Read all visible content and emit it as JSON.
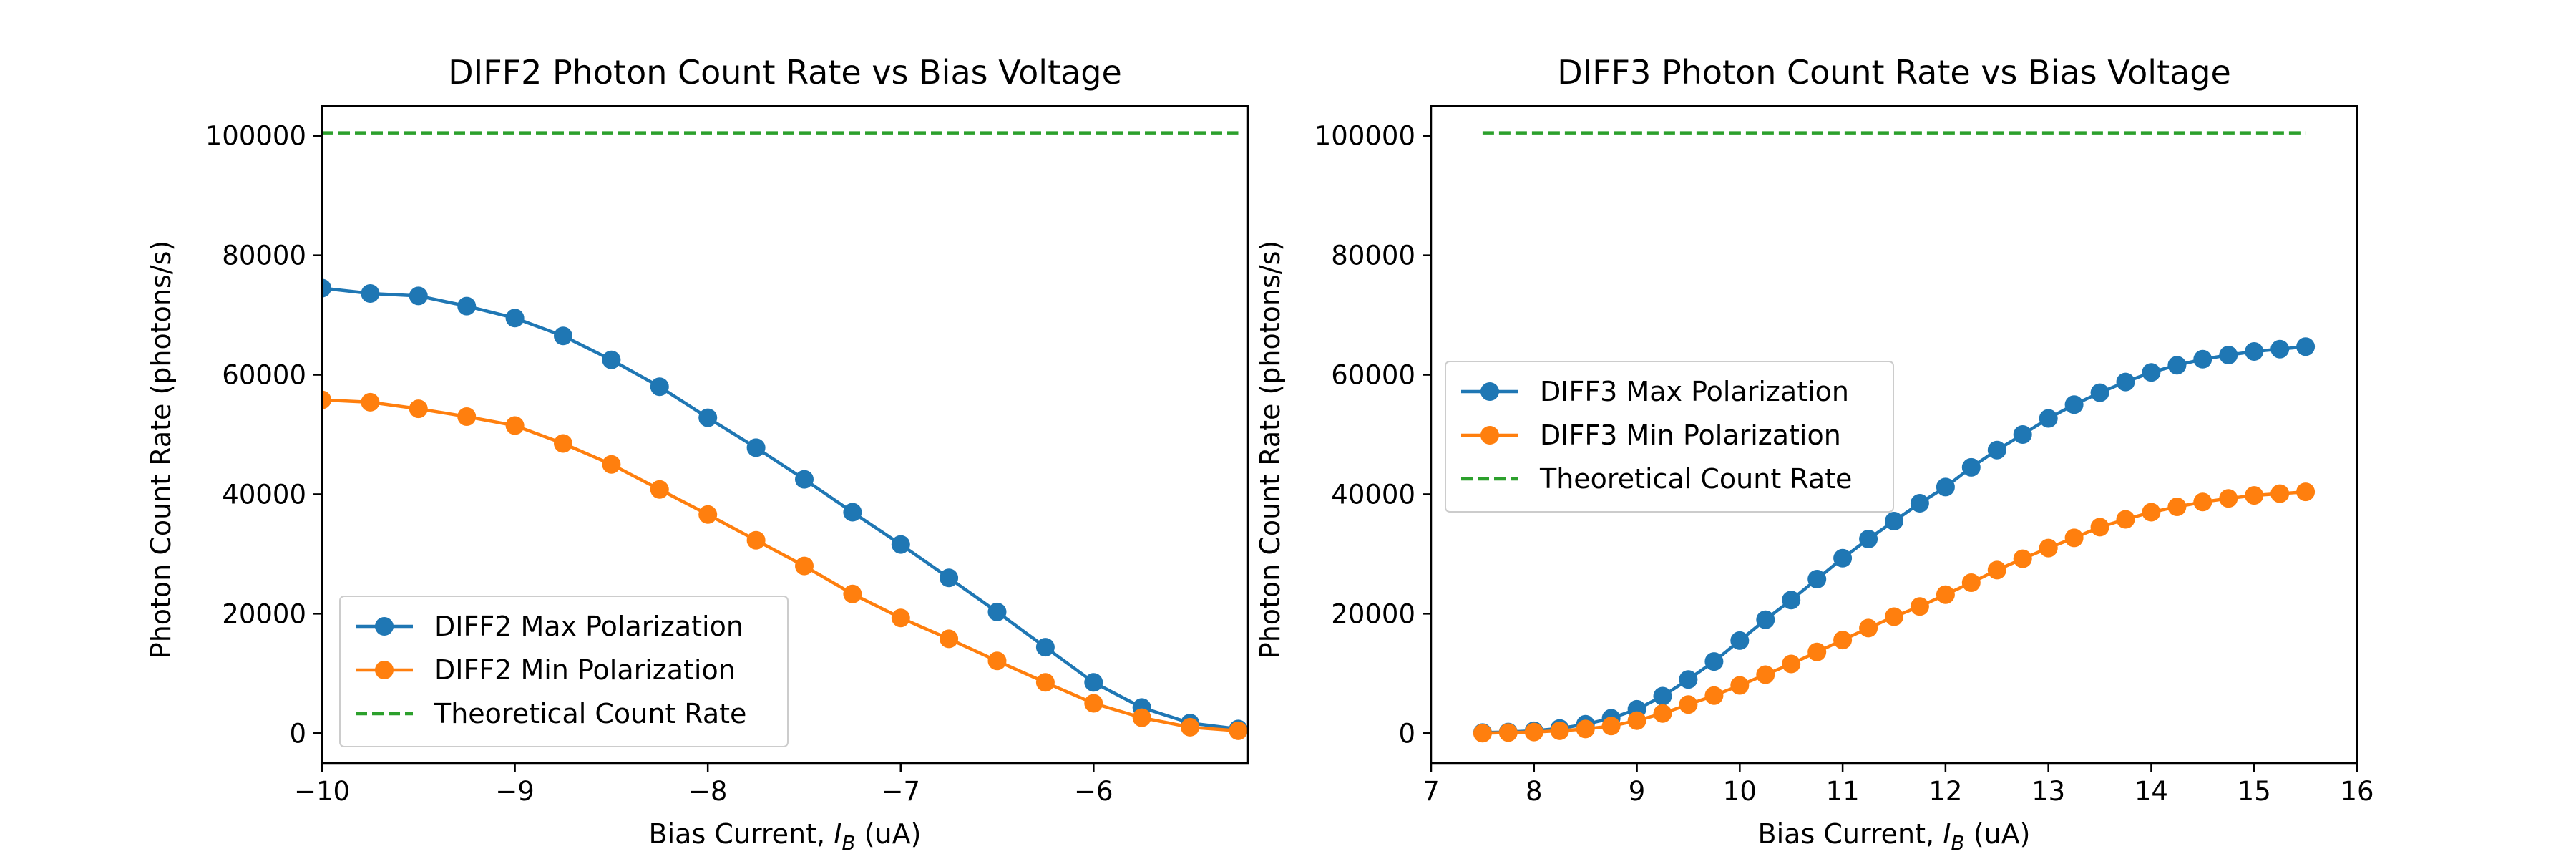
{
  "chart_data": [
    {
      "type": "line",
      "title": "DIFF2 Photon Count Rate vs Bias Voltage",
      "xlabel_prefix": "Bias Current, ",
      "xlabel_symbol": "I",
      "xlabel_subscript": "B",
      "xlabel_suffix": " (uA)",
      "ylabel": "Photon Count Rate (photons/s)",
      "xlim": [
        -10.0,
        -5.2
      ],
      "ylim": [
        -5000,
        105000
      ],
      "xticks": [
        -10,
        -9,
        -8,
        -7,
        -6
      ],
      "xtick_labels": [
        "−10",
        "−9",
        "−8",
        "−7",
        "−6"
      ],
      "yticks": [
        0,
        20000,
        40000,
        60000,
        80000,
        100000
      ],
      "ytick_labels": [
        "0",
        "20000",
        "40000",
        "60000",
        "80000",
        "100000"
      ],
      "legend_position": "lower-left",
      "grid": false,
      "series": [
        {
          "name": "DIFF2 Max Polarization",
          "color": "#1f77b4",
          "style": "solid-marker",
          "x": [
            -10.0,
            -9.75,
            -9.5,
            -9.25,
            -9.0,
            -8.75,
            -8.5,
            -8.25,
            -8.0,
            -7.75,
            -7.5,
            -7.25,
            -7.0,
            -6.75,
            -6.5,
            -6.25,
            -6.0,
            -5.75,
            -5.5,
            -5.25
          ],
          "y": [
            74500,
            73600,
            73200,
            71500,
            69500,
            66500,
            62500,
            58000,
            52800,
            47800,
            42500,
            37000,
            31600,
            26000,
            20300,
            14400,
            8500,
            4300,
            1700,
            700
          ]
        },
        {
          "name": "DIFF2 Min Polarization",
          "color": "#ff7f0e",
          "style": "solid-marker",
          "x": [
            -10.0,
            -9.75,
            -9.5,
            -9.25,
            -9.0,
            -8.75,
            -8.5,
            -8.25,
            -8.0,
            -7.75,
            -7.5,
            -7.25,
            -7.0,
            -6.75,
            -6.5,
            -6.25,
            -6.0,
            -5.75,
            -5.5,
            -5.25
          ],
          "y": [
            55800,
            55400,
            54300,
            53000,
            51500,
            48500,
            45000,
            40800,
            36600,
            32300,
            28000,
            23300,
            19300,
            15800,
            12100,
            8500,
            5000,
            2600,
            1000,
            400
          ]
        },
        {
          "name": "Theoretical Count Rate",
          "color": "#2ca02c",
          "style": "dashed",
          "x": [
            -10.0,
            -5.25
          ],
          "y": [
            100500,
            100500
          ]
        }
      ]
    },
    {
      "type": "line",
      "title": "DIFF3 Photon Count Rate vs Bias Voltage",
      "xlabel_prefix": "Bias Current, ",
      "xlabel_symbol": "I",
      "xlabel_subscript": "B",
      "xlabel_suffix": " (uA)",
      "ylabel": "Photon Count Rate (photons/s)",
      "xlim": [
        7,
        16
      ],
      "ylim": [
        -5000,
        105000
      ],
      "xticks": [
        7,
        8,
        9,
        10,
        11,
        12,
        13,
        14,
        15,
        16
      ],
      "xtick_labels": [
        "7",
        "8",
        "9",
        "10",
        "11",
        "12",
        "13",
        "14",
        "15",
        "16"
      ],
      "yticks": [
        0,
        20000,
        40000,
        60000,
        80000,
        100000
      ],
      "ytick_labels": [
        "0",
        "20000",
        "40000",
        "60000",
        "80000",
        "100000"
      ],
      "legend_position": "center-left",
      "grid": false,
      "series": [
        {
          "name": "DIFF3 Max Polarization",
          "color": "#1f77b4",
          "style": "solid-marker",
          "x": [
            7.5,
            7.75,
            8.0,
            8.25,
            8.5,
            8.75,
            9.0,
            9.25,
            9.5,
            9.75,
            10.0,
            10.25,
            10.5,
            10.75,
            11.0,
            11.25,
            11.5,
            11.75,
            12.0,
            12.25,
            12.5,
            12.75,
            13.0,
            13.25,
            13.5,
            13.75,
            14.0,
            14.25,
            14.5,
            14.75,
            15.0,
            15.25,
            15.5
          ],
          "y": [
            100,
            200,
            400,
            800,
            1500,
            2500,
            4000,
            6200,
            9000,
            12000,
            15500,
            19000,
            22300,
            25800,
            29300,
            32500,
            35500,
            38500,
            41200,
            44500,
            47400,
            50000,
            52700,
            55000,
            57000,
            58800,
            60400,
            61600,
            62600,
            63300,
            63900,
            64300,
            64700
          ]
        },
        {
          "name": "DIFF3 Min Polarization",
          "color": "#ff7f0e",
          "style": "solid-marker",
          "x": [
            7.5,
            7.75,
            8.0,
            8.25,
            8.5,
            8.75,
            9.0,
            9.25,
            9.5,
            9.75,
            10.0,
            10.25,
            10.5,
            10.75,
            11.0,
            11.25,
            11.5,
            11.75,
            12.0,
            12.25,
            12.5,
            12.75,
            13.0,
            13.25,
            13.5,
            13.75,
            14.0,
            14.25,
            14.5,
            14.75,
            15.0,
            15.25,
            15.5
          ],
          "y": [
            0,
            100,
            200,
            400,
            700,
            1200,
            2100,
            3300,
            4800,
            6300,
            8000,
            9800,
            11600,
            13600,
            15600,
            17600,
            19500,
            21200,
            23200,
            25200,
            27300,
            29200,
            31000,
            32700,
            34500,
            35800,
            37000,
            37900,
            38700,
            39300,
            39800,
            40100,
            40400
          ]
        },
        {
          "name": "Theoretical Count Rate",
          "color": "#2ca02c",
          "style": "dashed",
          "x": [
            7.5,
            15.5
          ],
          "y": [
            100500,
            100500
          ]
        }
      ]
    }
  ]
}
